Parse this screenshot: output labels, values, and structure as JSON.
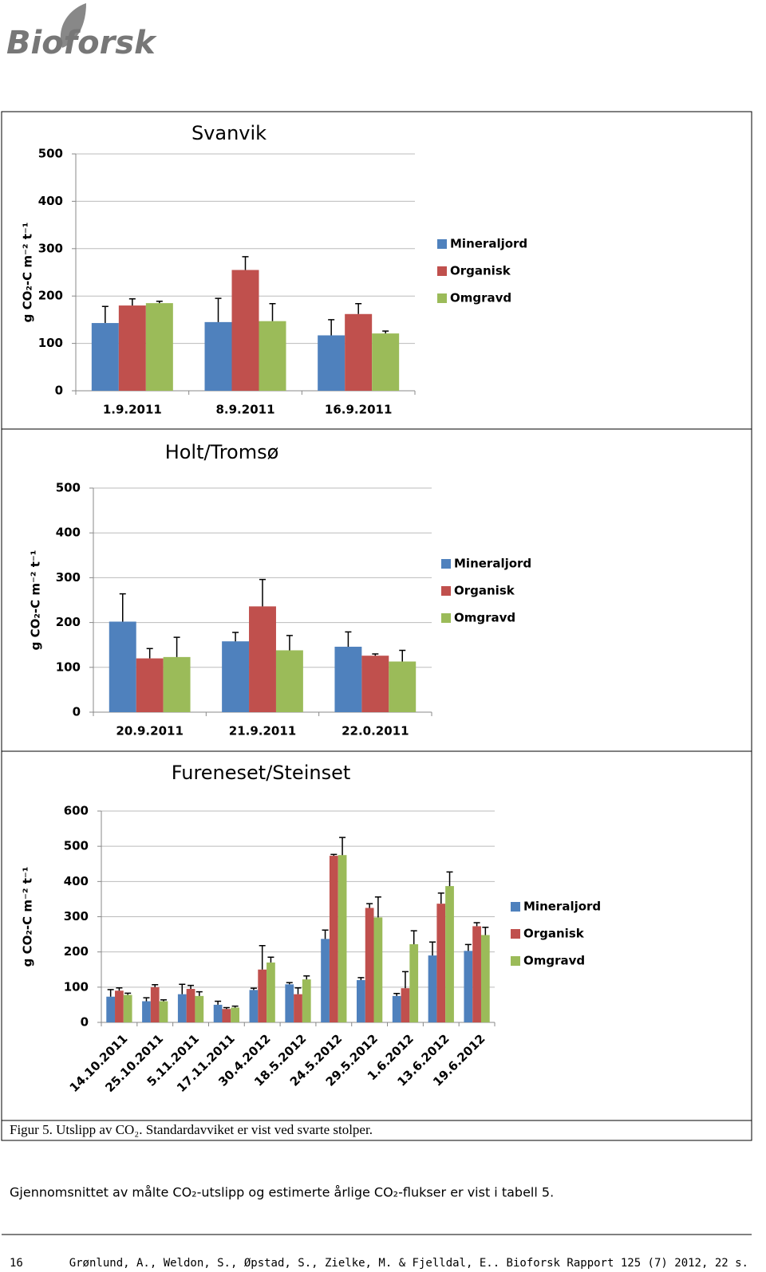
{
  "logo": "Bioforsk",
  "chart_data": [
    {
      "type": "bar",
      "title": "Svanvik",
      "y_label": "g CO₂-C m⁻² t⁻¹",
      "categories": [
        "1.9.2011",
        "8.9.2011",
        "16.9.2011"
      ],
      "series": [
        {
          "name": "Mineraljord",
          "color": "#4f81bd",
          "values": [
            143,
            145,
            117
          ],
          "errors": [
            35,
            50,
            33
          ]
        },
        {
          "name": "Organisk",
          "color": "#c0504d",
          "values": [
            180,
            255,
            162
          ],
          "errors": [
            14,
            28,
            22
          ]
        },
        {
          "name": "Omgravd",
          "color": "#9bbb59",
          "values": [
            185,
            147,
            121
          ],
          "errors": [
            4,
            37,
            5
          ]
        }
      ],
      "ylim": [
        0,
        500
      ],
      "yticks": [
        0,
        100,
        200,
        300,
        400,
        500
      ],
      "grid": true,
      "legend": "right"
    },
    {
      "type": "bar",
      "title": "Holt/Tromsø",
      "y_label": "g CO₂-C m⁻² t⁻¹",
      "categories": [
        "20.9.2011",
        "21.9.2011",
        "22.0.2011"
      ],
      "series": [
        {
          "name": "Mineraljord",
          "color": "#4f81bd",
          "values": [
            202,
            158,
            146
          ],
          "errors": [
            62,
            20,
            33
          ]
        },
        {
          "name": "Organisk",
          "color": "#c0504d",
          "values": [
            120,
            236,
            126
          ],
          "errors": [
            22,
            60,
            4
          ]
        },
        {
          "name": "Omgravd",
          "color": "#9bbb59",
          "values": [
            123,
            138,
            113
          ],
          "errors": [
            44,
            33,
            25
          ]
        }
      ],
      "ylim": [
        0,
        500
      ],
      "yticks": [
        0,
        100,
        200,
        300,
        400,
        500
      ],
      "grid": true,
      "legend": "right"
    },
    {
      "type": "bar",
      "title": "Fureneset/Steinset",
      "y_label": "g CO₂-C m⁻² t⁻¹",
      "categories": [
        "14.10.2011",
        "25.10.2011",
        "5.11.2011",
        "17.11.2011",
        "30.4.2012",
        "18.5.2012",
        "24.5.2012",
        "29.5.2012",
        "1.6.2012",
        "13.6.2012",
        "19.6.2012"
      ],
      "series": [
        {
          "name": "Mineraljord",
          "color": "#4f81bd",
          "values": [
            73,
            60,
            80,
            50,
            92,
            108,
            237,
            120,
            75,
            190,
            203
          ],
          "errors": [
            20,
            10,
            28,
            10,
            5,
            5,
            25,
            7,
            7,
            38,
            18
          ]
        },
        {
          "name": "Organisk",
          "color": "#c0504d",
          "values": [
            90,
            100,
            95,
            38,
            150,
            80,
            473,
            325,
            97,
            337,
            273
          ],
          "errors": [
            8,
            7,
            10,
            4,
            68,
            18,
            4,
            12,
            47,
            30,
            10
          ]
        },
        {
          "name": "Omgravd",
          "color": "#9bbb59",
          "values": [
            78,
            60,
            75,
            42,
            170,
            122,
            475,
            298,
            222,
            387,
            248
          ],
          "errors": [
            5,
            4,
            12,
            4,
            15,
            10,
            50,
            58,
            38,
            40,
            22
          ]
        }
      ],
      "ylim": [
        0,
        600
      ],
      "yticks": [
        0,
        100,
        200,
        300,
        400,
        500,
        600
      ],
      "grid": true,
      "legend": "right"
    }
  ],
  "caption": "Figur 5. Utslipp av CO₂. Standardavviket er vist ved svarte stolper.",
  "paragraph": "Gjennomsnittet av målte CO₂-utslipp og estimerte årlige CO₂-flukser er vist i tabell 5.",
  "footer": {
    "page": "16",
    "citation": "Grønlund, A., Weldon, S., Øpstad, S., Zielke, M. & Fjelldal, E.. Bioforsk Rapport 125 (7) 2012, 22 s."
  }
}
